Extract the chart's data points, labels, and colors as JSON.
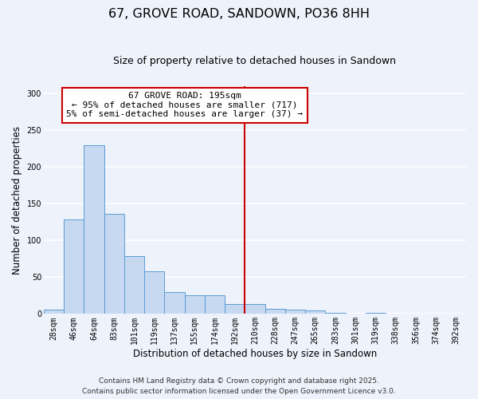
{
  "title": "67, GROVE ROAD, SANDOWN, PO36 8HH",
  "subtitle": "Size of property relative to detached houses in Sandown",
  "xlabel": "Distribution of detached houses by size in Sandown",
  "ylabel": "Number of detached properties",
  "bar_labels": [
    "28sqm",
    "46sqm",
    "64sqm",
    "83sqm",
    "101sqm",
    "119sqm",
    "137sqm",
    "155sqm",
    "174sqm",
    "192sqm",
    "210sqm",
    "228sqm",
    "247sqm",
    "265sqm",
    "283sqm",
    "301sqm",
    "319sqm",
    "338sqm",
    "356sqm",
    "374sqm",
    "392sqm"
  ],
  "bar_values": [
    6,
    129,
    229,
    136,
    79,
    58,
    30,
    25,
    25,
    14,
    13,
    7,
    6,
    5,
    2,
    0,
    1,
    0,
    0,
    0,
    0
  ],
  "bar_color": "#c6d9f1",
  "bar_edge_color": "#5b9bd5",
  "vline_x_idx": 9.5,
  "vline_color": "#cc0000",
  "annotation_line1": "67 GROVE ROAD: 195sqm",
  "annotation_line2": "← 95% of detached houses are smaller (717)",
  "annotation_line3": "5% of semi-detached houses are larger (37) →",
  "annotation_box_color": "#ffffff",
  "annotation_box_edge_color": "#cc0000",
  "ylim": [
    0,
    310
  ],
  "yticks": [
    0,
    50,
    100,
    150,
    200,
    250,
    300
  ],
  "footer_line1": "Contains HM Land Registry data © Crown copyright and database right 2025.",
  "footer_line2": "Contains public sector information licensed under the Open Government Licence v3.0.",
  "bg_color": "#eef2fb",
  "grid_color": "#ffffff",
  "title_fontsize": 11.5,
  "subtitle_fontsize": 9,
  "axis_label_fontsize": 8.5,
  "tick_fontsize": 7,
  "annotation_fontsize": 8,
  "footer_fontsize": 6.5
}
